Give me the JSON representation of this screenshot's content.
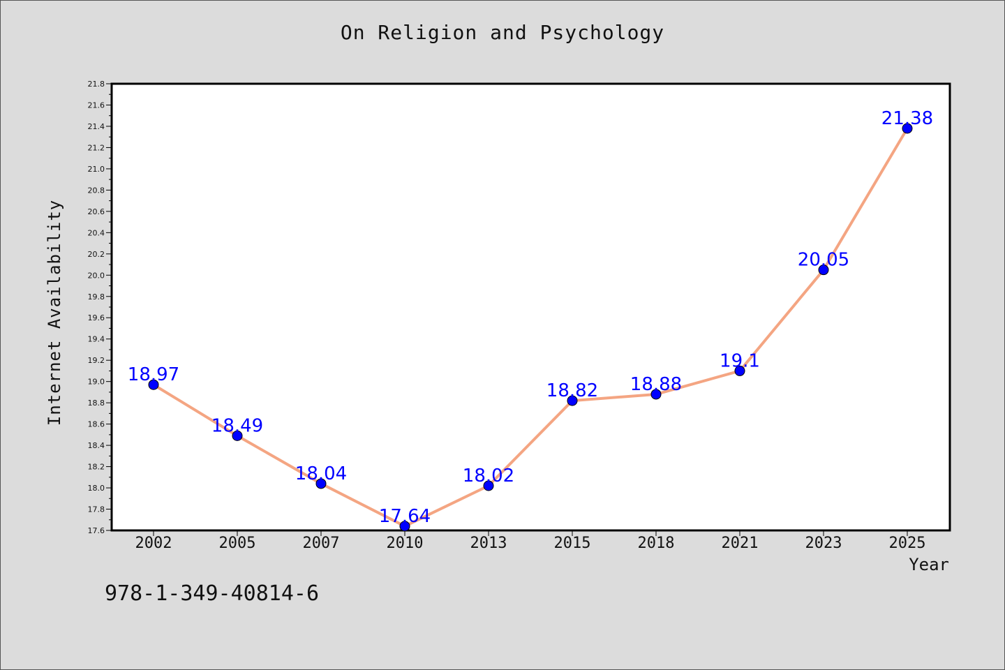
{
  "chart_data": {
    "type": "line",
    "title": "On Religion and Psychology",
    "xlabel": "Year",
    "ylabel": "Internet Availability",
    "categories": [
      "2002",
      "2005",
      "2007",
      "2010",
      "2013",
      "2015",
      "2018",
      "2021",
      "2023",
      "2025"
    ],
    "series": [
      {
        "values": [
          18.97,
          18.49,
          18.04,
          17.64,
          18.02,
          18.82,
          18.88,
          19.1,
          20.05,
          21.38
        ]
      }
    ],
    "data_labels": [
      "18.97",
      "18.49",
      "18.04",
      "17.64",
      "18.02",
      "18.82",
      "18.88",
      "19.1",
      "20.05",
      "21.38"
    ],
    "ylim": [
      17.6,
      21.8
    ],
    "y_ticks": [
      "17.6",
      "17.8",
      "18.0",
      "18.2",
      "18.4",
      "18.6",
      "18.8",
      "19.0",
      "19.2",
      "19.4",
      "19.6",
      "19.8",
      "20.0",
      "20.2",
      "20.4",
      "20.6",
      "20.8",
      "21.0",
      "21.2",
      "21.4",
      "21.6",
      "21.8"
    ],
    "grid": false,
    "line_color": "#f4a582",
    "marker_color": "#0000ff",
    "label_color": "#0000ff"
  },
  "footer_text": "978-1-349-40814-6"
}
